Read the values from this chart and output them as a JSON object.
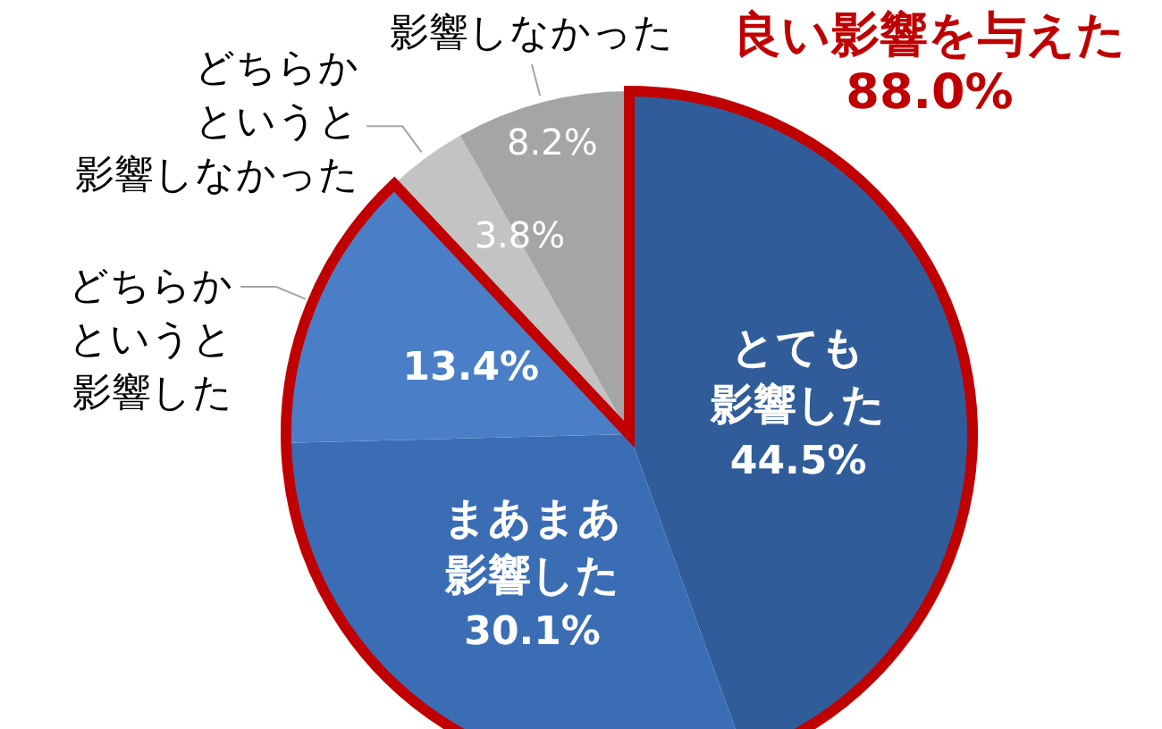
{
  "chart_data": {
    "type": "pie",
    "categories": [
      "とても影響した",
      "まあまあ影響した",
      "どちらかというと影響した",
      "どちらかというと影響しなかった",
      "影響しなかった"
    ],
    "values": [
      44.5,
      30.1,
      13.4,
      3.8,
      8.2
    ],
    "colors": [
      "#305d9a",
      "#3b6db5",
      "#4a7fc8",
      "#c3c3c3",
      "#a5a5a5"
    ],
    "value_labels": [
      "44.5%",
      "30.1%",
      "13.4%",
      "3.8%",
      "8.2%"
    ],
    "annotations": [
      "良い影響を与えた\n88.0%"
    ]
  }
}
